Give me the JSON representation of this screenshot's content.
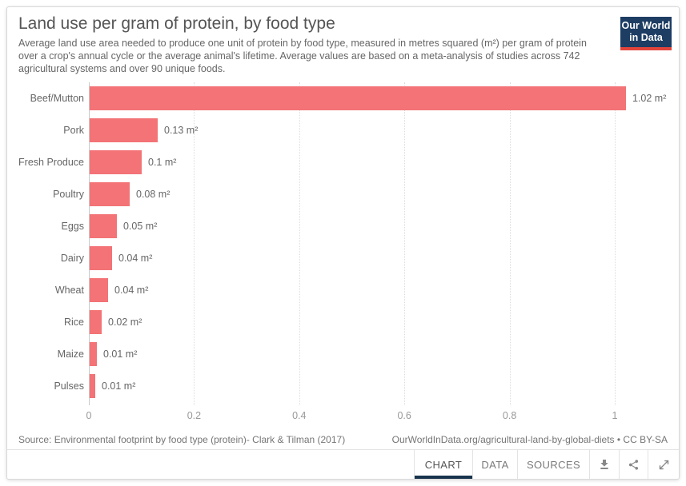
{
  "header": {
    "title": "Land use per gram of protein, by food type",
    "subtitle": "Average land use area needed to produce one unit of protein by food type, measured in metres squared (m²) per gram of protein over a crop's annual cycle or the average animal's lifetime. Average values are based on a meta-analysis of studies across 742 agricultural systems and over 90 unique foods."
  },
  "logo": {
    "line1": "Our World",
    "line2": "in Data",
    "bg_color": "#1d3d63",
    "accent_color": "#e2443b"
  },
  "chart_data": {
    "type": "bar",
    "orientation": "horizontal",
    "title": "Land use per gram of protein, by food type",
    "unit": "m² per gram of protein",
    "categories": [
      "Beef/Mutton",
      "Pork",
      "Fresh Produce",
      "Poultry",
      "Eggs",
      "Dairy",
      "Wheat",
      "Rice",
      "Maize",
      "Pulses"
    ],
    "values": [
      1.02,
      0.13,
      0.1,
      0.08,
      0.05,
      0.04,
      0.04,
      0.02,
      0.01,
      0.01
    ],
    "plot_values": [
      1.02,
      0.13,
      0.099,
      0.076,
      0.052,
      0.043,
      0.035,
      0.023,
      0.014,
      0.011
    ],
    "value_labels": [
      "1.02 m²",
      "0.13 m²",
      "0.1 m²",
      "0.08 m²",
      "0.05 m²",
      "0.04 m²",
      "0.04 m²",
      "0.02 m²",
      "0.01 m²",
      "0.01 m²"
    ],
    "x_ticks": [
      0,
      0.2,
      0.4,
      0.6,
      0.8,
      1
    ],
    "x_tick_labels": [
      "0",
      "0.2",
      "0.4",
      "0.6",
      "0.8",
      "1"
    ],
    "xlim": [
      0,
      1.1
    ],
    "grid": "vertical-dotted",
    "legend": "none",
    "bar_color": "#f37376"
  },
  "footer": {
    "source": "Source: Environmental footprint by food type (protein)- Clark & Tilman (2017)",
    "link": "OurWorldInData.org/agricultural-land-by-global-diets • CC BY-SA"
  },
  "toolbar": {
    "tabs": [
      {
        "label": "CHART",
        "active": true
      },
      {
        "label": "DATA",
        "active": false
      },
      {
        "label": "SOURCES",
        "active": false
      }
    ],
    "icons": [
      "download-icon",
      "share-icon",
      "expand-icon"
    ],
    "active_underline_color": "#17344c"
  }
}
